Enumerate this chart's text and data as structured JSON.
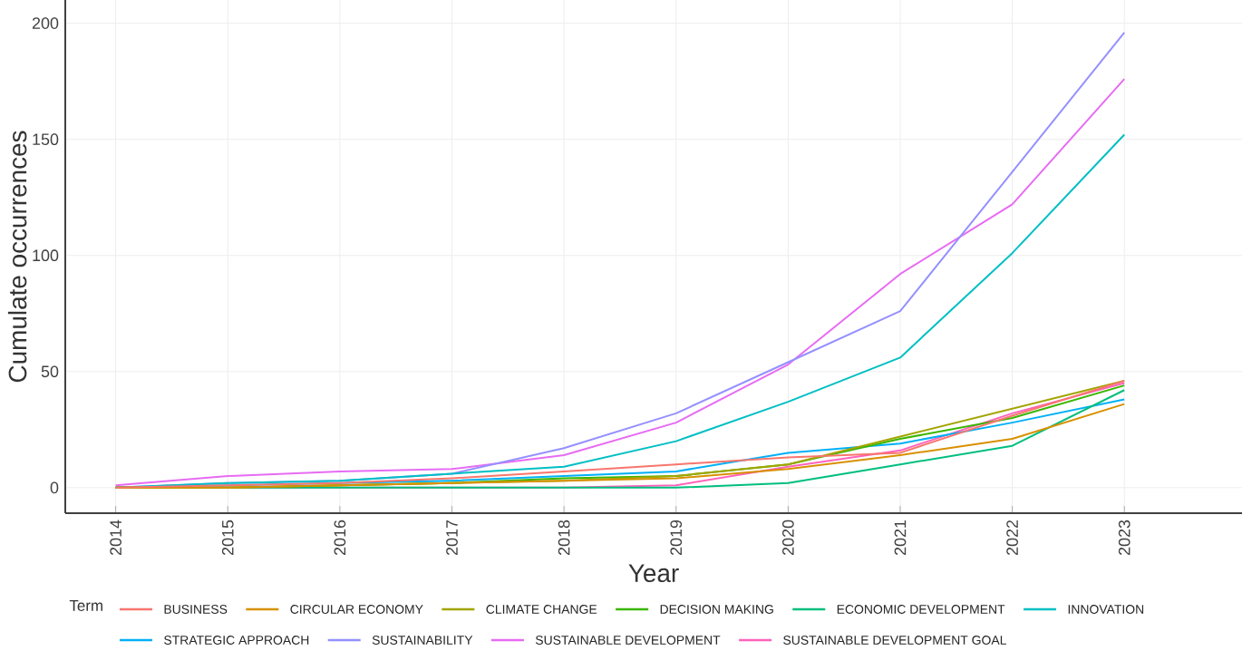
{
  "chart_data": {
    "type": "line",
    "xlabel": "Year",
    "ylabel": "Cumulate occurrences",
    "legend_title": "Term",
    "x": [
      2014,
      2015,
      2016,
      2017,
      2018,
      2019,
      2020,
      2021,
      2022,
      2023
    ],
    "xlim": [
      2013.55,
      2024.05
    ],
    "xticks": [
      2014,
      2015,
      2016,
      2017,
      2018,
      2019,
      2020,
      2021,
      2022,
      2023
    ],
    "ylim": [
      -11,
      210
    ],
    "yticks": [
      0,
      50,
      100,
      150,
      200
    ],
    "grid": true,
    "legend": "bottom",
    "line_style": "solid",
    "series": [
      {
        "name": "BUSINESS",
        "color": "#f8766d",
        "values": [
          0,
          1,
          2,
          4,
          7,
          10,
          13,
          15,
          31,
          46
        ]
      },
      {
        "name": "CIRCULAR ECONOMY",
        "color": "#d89000",
        "values": [
          0,
          0,
          1,
          2,
          3,
          4,
          8,
          14,
          21,
          36
        ]
      },
      {
        "name": "CLIMATE CHANGE",
        "color": "#a3a500",
        "values": [
          0,
          0,
          1,
          2,
          3,
          5,
          10,
          22,
          34,
          46
        ]
      },
      {
        "name": "DECISION MAKING",
        "color": "#39b600",
        "values": [
          0,
          0,
          1,
          2,
          4,
          5,
          10,
          21,
          30,
          44
        ]
      },
      {
        "name": "ECONOMIC DEVELOPMENT",
        "color": "#00bf7d",
        "values": [
          0,
          0,
          0,
          0,
          0,
          0,
          2,
          10,
          18,
          42
        ]
      },
      {
        "name": "INNOVATION",
        "color": "#00bfc4",
        "values": [
          0,
          2,
          3,
          6,
          9,
          20,
          37,
          56,
          101,
          152
        ]
      },
      {
        "name": "STRATEGIC APPROACH",
        "color": "#00b0f6",
        "values": [
          0,
          1,
          2,
          3,
          5,
          7,
          15,
          19,
          28,
          38
        ]
      },
      {
        "name": "SUSTAINABILITY",
        "color": "#9590ff",
        "values": [
          0,
          2,
          3,
          6,
          17,
          32,
          54,
          76,
          136,
          196
        ]
      },
      {
        "name": "SUSTAINABLE DEVELOPMENT",
        "color": "#e76bf3",
        "values": [
          1,
          5,
          7,
          8,
          14,
          28,
          53,
          92,
          122,
          176
        ]
      },
      {
        "name": "SUSTAINABLE DEVELOPMENT GOAL",
        "color": "#ff62bc",
        "values": [
          0,
          0,
          0,
          0,
          0,
          1,
          9,
          16,
          32,
          45
        ]
      }
    ]
  }
}
